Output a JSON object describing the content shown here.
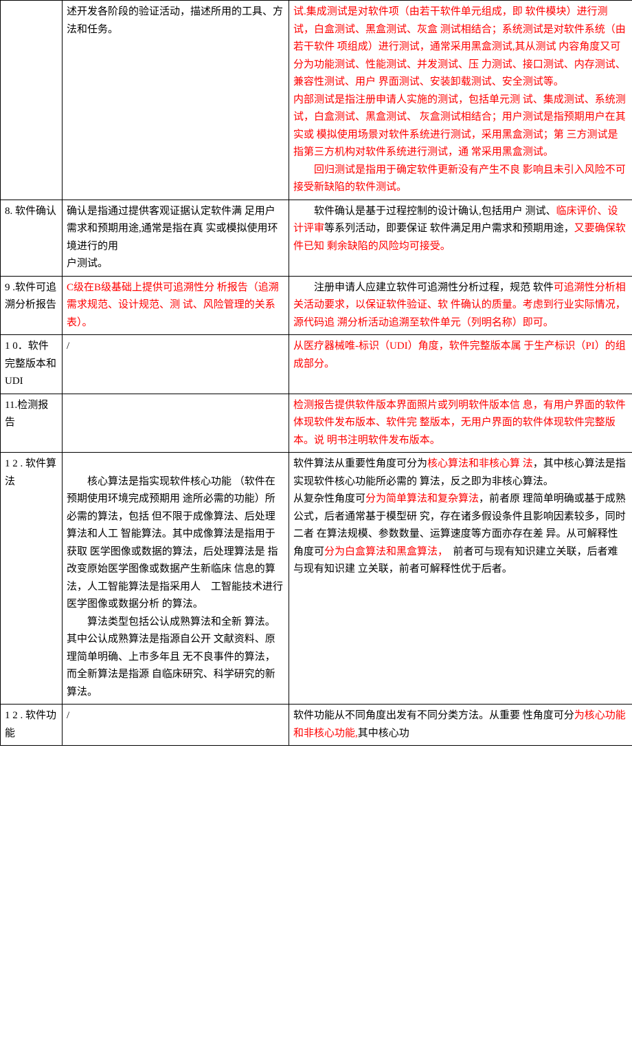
{
  "rows": [
    {
      "c1": "",
      "c2_parts": [
        {
          "t": "述开发各阶段的验证活动，描述所用的工具、方法和任务。",
          "red": false
        }
      ],
      "c3_parts": [
        {
          "t": "试.集成测试是对软件项（由若干软件单元组成，即 软件模块）进行测试，白盒测试、黑盒测试、灰盒 测试相结合；系统测试是对软件系统（由若干软件 项组成）进行测试，通常采用黑盒测试,其从测试 内容角度又可分为功能测试、性能测试、并发测试、压 力测试、接口测试、内存测试、兼容性测试、用户 界面测试、安装卸载测试、安全测试等。",
          "red": true
        },
        {
          "t": "\n",
          "red": false
        },
        {
          "t": "内部测试是指注册申请人实施的测试，包括单元测 试、集成测试、系统测试，白盒测试、黑盒测试、 灰盒测试相结合；用户测试是指预期用户在其实或 模拟使用场景对软件系统进行测试，采用黑盒测试；第 三方测试是指第三方机构对软件系统进行测试，通 常采用黑盒测试。",
          "red": true
        },
        {
          "t": "\n　　",
          "red": false
        },
        {
          "t": "回归测试是指用于确定软件更新没有产生不良 影响且未引入风险不可接受新缺陷的软件测试。",
          "red": true
        }
      ]
    },
    {
      "c1": "8. 软件确认",
      "c2_parts": [
        {
          "t": "确认是指通过提供客观证据认定软件满 足用户需求和预期用途,通常是指在真 实或模拟使用环境进行的用\n户测试。",
          "red": false
        }
      ],
      "c3_parts": [
        {
          "t": "　　软件确认是基于过程控制的设计确认,包括用户 测试、",
          "red": false
        },
        {
          "t": "临床评价、设计评审",
          "red": true
        },
        {
          "t": "等系列活动，即要保证 软件满足用户需求和预期用途，",
          "red": false
        },
        {
          "t": "又要确保软件已知 剩余缺陷的风险均可接受。",
          "red": true
        }
      ]
    },
    {
      "c1": "9 .软件可追溯分析报告",
      "c2_parts": [
        {
          "t": "C级在B级基础上提供可追溯性分 析报告（追溯需求规范、设计规范、测 试、风险管理的关系表）。",
          "red": true
        }
      ],
      "c3_parts": [
        {
          "t": "　　注册申请人应建立软件可追溯性分析过程，规范 软件",
          "red": false
        },
        {
          "t": "可追溯性分析相关活动要求，以保证软件验证、软 件确认的质量。考虑到行业实际情况，源代码追 溯分析活动追溯至软件单元（列明名称）即可。",
          "red": true
        }
      ]
    },
    {
      "c1": "1 0．软件完整版本和UDI",
      "c2_parts": [
        {
          "t": "/",
          "red": false
        }
      ],
      "c3_parts": [
        {
          "t": "从医疗器械唯-标识（UDI）角度，软件完整版本属 于生产标识（PI）的组成部分。",
          "red": true
        }
      ]
    },
    {
      "c1": "11.检测报告",
      "c2_parts": [],
      "c3_parts": [
        {
          "t": "检测报告提供软件版本界面照片或列明软件版本信 息，有用户界面的软件体现软件发布版本、软件完 整版本，无用户界面的软件体现软件完整版本。说 明书注明软件发布版本。",
          "red": true
        }
      ]
    },
    {
      "c1": "1 2 . 软件算法",
      "c2_parts": [
        {
          "t": "\n　　核心算法是指实现软件核心功能 （软件在预期使用环境完成预期用 途所必需的功能）所必需的算法，包括 但不限于成像算法、后处理算法和人工 智能算法。其中成像算法是指用于获取 医学图像或数据的算法，后处理算法是 指改变原始医学图像或数据产生新临床 信息的算法，人工智能算法是指采用人　工智能技术进行医学图像或数据分析 的算法。\n　　算法类型包括公认成熟算法和全新 算法。其中公认成熟算法是指源自公开 文献资料、原理简单明确、上市多年且 无不良事件的算法，而全新算法是指源 自临床研究、科学研究的新 算法。",
          "red": false
        }
      ],
      "c3_parts": [
        {
          "t": "软件算法从重要性角度可分为",
          "red": false
        },
        {
          "t": "核心算法和非核心算 法",
          "red": true
        },
        {
          "t": "，其中核心算法是指实现软件核心功能所必需的 算法，反之即为非核心算法。\n从复杂性角度可",
          "red": false
        },
        {
          "t": "分为简单算法和复杂算法",
          "red": true
        },
        {
          "t": "，前者原 理简单明确或基于成熟公式，后者通常基于模型研 究，存在诸多假设条件且影响因素较多，同时二者 在算法规模、参数数量、运算速度等方面亦存在差 异。从可解释性角度可",
          "red": false
        },
        {
          "t": "分为白盒算法和黑盒算法，",
          "red": true
        },
        {
          "t": "　前者可与现有知识建立关联，后者难与现有知识建 立关联，前者可解释性优于后者。",
          "red": false
        }
      ]
    },
    {
      "c1": "1 2 . 软件功能",
      "c2_parts": [
        {
          "t": "/",
          "red": false
        }
      ],
      "c3_parts": [
        {
          "t": "软件功能从不同角度出发有不同分类方法。从重要 性角度可分",
          "red": false
        },
        {
          "t": "为核心功能和非核心功能,",
          "red": true
        },
        {
          "t": "其中核心功",
          "red": false
        }
      ]
    }
  ]
}
